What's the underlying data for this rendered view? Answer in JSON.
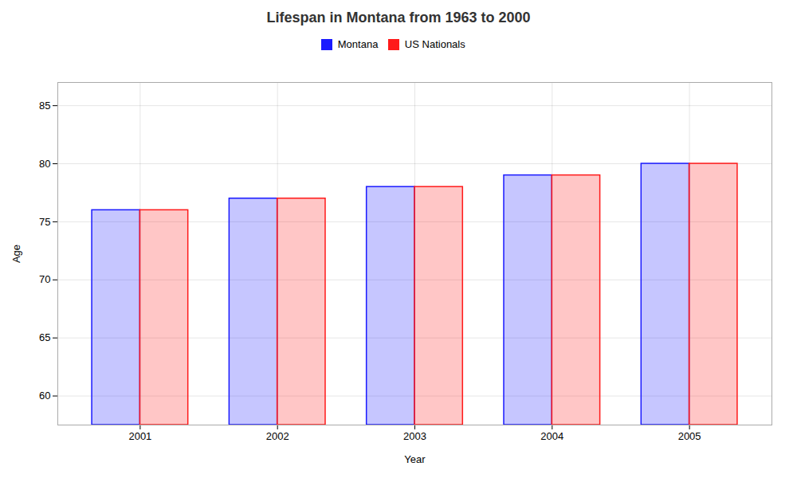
{
  "chart_data": {
    "type": "bar",
    "title": "Lifespan in Montana from 1963 to 2000",
    "categories": [
      "2001",
      "2002",
      "2003",
      "2004",
      "2005"
    ],
    "series": [
      {
        "name": "Montana",
        "color": "#1a1aff",
        "values": [
          76,
          77,
          78,
          79,
          80
        ]
      },
      {
        "name": "US Nationals",
        "color": "#ff1a1a",
        "values": [
          76,
          77,
          78,
          79,
          80
        ]
      }
    ],
    "xlabel": "Year",
    "ylabel": "Age",
    "ylim": [
      57.5,
      87
    ],
    "yticks": [
      60,
      65,
      70,
      75,
      80,
      85
    ],
    "grid": true,
    "legend": "top"
  }
}
